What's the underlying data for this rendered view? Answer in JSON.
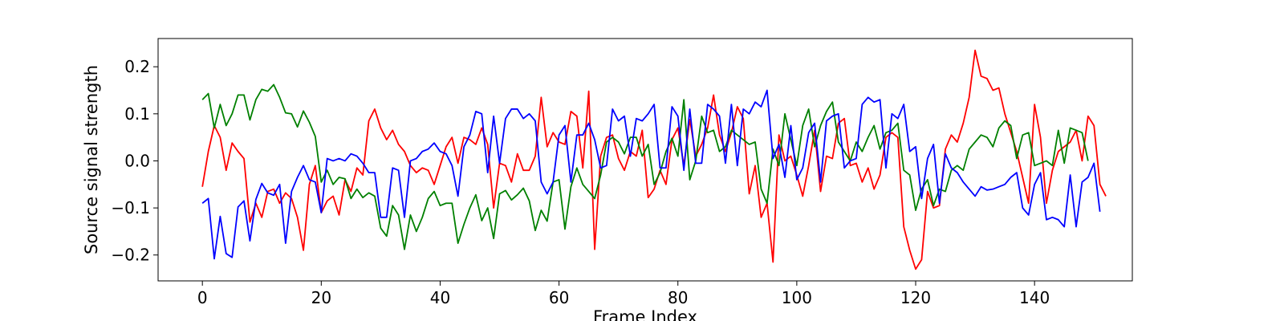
{
  "chart_data": {
    "type": "line",
    "title": "",
    "xlabel": "Frame Index",
    "ylabel": "Source signal strength",
    "xlim": [
      -7.45,
      156.45
    ],
    "ylim": [
      -0.255,
      0.26
    ],
    "xticks": [
      0,
      20,
      40,
      60,
      80,
      100,
      120,
      140
    ],
    "yticks": [
      -0.2,
      -0.1,
      0.0,
      0.1,
      0.2
    ],
    "ytick_labels": [
      "−0.2",
      "−0.1",
      "0.0",
      "0.1",
      "0.2"
    ],
    "grid": false,
    "legend": "none",
    "x_start": 0,
    "series": [
      {
        "color": "#ff0000",
        "values": [
          -0.055,
          0.02,
          0.075,
          0.05,
          -0.02,
          0.038,
          0.02,
          0.005,
          -0.13,
          -0.09,
          -0.12,
          -0.065,
          -0.06,
          -0.09,
          -0.068,
          -0.08,
          -0.12,
          -0.19,
          -0.05,
          -0.01,
          -0.11,
          -0.085,
          -0.075,
          -0.115,
          -0.04,
          -0.065,
          -0.015,
          -0.03,
          0.085,
          0.11,
          0.07,
          0.045,
          0.065,
          0.035,
          0.02,
          -0.01,
          -0.025,
          -0.015,
          -0.02,
          -0.05,
          -0.01,
          0.03,
          0.05,
          -0.005,
          0.05,
          0.045,
          0.035,
          0.07,
          0.035,
          -0.1,
          -0.005,
          -0.01,
          -0.045,
          0.015,
          -0.02,
          -0.02,
          0.01,
          0.135,
          0.03,
          0.06,
          0.04,
          0.035,
          0.105,
          0.095,
          -0.015,
          0.148,
          -0.188,
          0.01,
          0.05,
          0.055,
          0.005,
          -0.02,
          0.02,
          0.01,
          0.065,
          -0.078,
          -0.06,
          -0.02,
          -0.05,
          0.045,
          0.07,
          -0.01,
          0.088,
          0.01,
          0.035,
          0.07,
          0.14,
          0.055,
          0.02,
          0.06,
          0.115,
          0.09,
          -0.07,
          -0.01,
          -0.12,
          -0.09,
          -0.215,
          0.055,
          0.0,
          0.01,
          -0.03,
          -0.075,
          -0.01,
          0.065,
          -0.065,
          0.01,
          0.005,
          0.08,
          0.09,
          -0.01,
          -0.005,
          -0.045,
          -0.015,
          -0.06,
          -0.03,
          0.05,
          0.06,
          0.05,
          -0.14,
          -0.19,
          -0.23,
          -0.21,
          -0.065,
          -0.1,
          -0.095,
          0.025,
          0.055,
          0.04,
          0.08,
          0.135,
          0.235,
          0.18,
          0.175,
          0.15,
          0.155,
          0.1,
          0.06,
          0.02,
          -0.035,
          -0.09,
          0.12,
          0.05,
          -0.09,
          -0.02,
          0.02,
          0.03,
          0.04,
          0.065,
          0.0,
          0.095,
          0.075,
          -0.05,
          -0.075
        ]
      },
      {
        "color": "#008000",
        "values": [
          0.13,
          0.143,
          0.07,
          0.12,
          0.075,
          0.1,
          0.14,
          0.14,
          0.087,
          0.13,
          0.152,
          0.148,
          0.162,
          0.135,
          0.102,
          0.1,
          0.072,
          0.106,
          0.082,
          0.052,
          -0.045,
          -0.02,
          -0.05,
          -0.035,
          -0.038,
          -0.08,
          -0.06,
          -0.078,
          -0.068,
          -0.075,
          -0.143,
          -0.16,
          -0.095,
          -0.115,
          -0.188,
          -0.115,
          -0.15,
          -0.12,
          -0.08,
          -0.065,
          -0.095,
          -0.09,
          -0.09,
          -0.175,
          -0.135,
          -0.1,
          -0.072,
          -0.127,
          -0.1,
          -0.165,
          -0.07,
          -0.063,
          -0.083,
          -0.072,
          -0.058,
          -0.085,
          -0.148,
          -0.105,
          -0.128,
          -0.045,
          -0.04,
          -0.145,
          -0.055,
          -0.015,
          -0.05,
          -0.065,
          -0.08,
          -0.03,
          0.04,
          0.05,
          0.04,
          0.015,
          0.05,
          0.05,
          0.01,
          0.035,
          -0.05,
          -0.025,
          0.02,
          0.048,
          0.01,
          0.13,
          -0.04,
          0.0,
          0.095,
          0.06,
          0.065,
          0.02,
          0.03,
          0.065,
          0.055,
          0.045,
          0.035,
          0.04,
          -0.06,
          -0.09,
          0.025,
          -0.01,
          0.1,
          0.045,
          -0.01,
          0.075,
          0.11,
          0.03,
          0.075,
          0.105,
          0.125,
          0.04,
          0.02,
          0.0,
          0.04,
          0.02,
          0.05,
          0.075,
          0.025,
          0.06,
          0.065,
          0.08,
          -0.02,
          -0.03,
          -0.105,
          -0.06,
          -0.04,
          -0.095,
          -0.06,
          -0.065,
          -0.02,
          -0.01,
          -0.02,
          0.025,
          0.04,
          0.055,
          0.05,
          0.03,
          0.07,
          0.085,
          0.075,
          0.005,
          0.055,
          0.06,
          -0.01,
          -0.005,
          0.0,
          -0.01,
          0.065,
          -0.005,
          0.07,
          0.065,
          0.06,
          0.0
        ]
      },
      {
        "color": "#0000ff",
        "values": [
          -0.09,
          -0.08,
          -0.208,
          -0.118,
          -0.197,
          -0.205,
          -0.098,
          -0.085,
          -0.17,
          -0.082,
          -0.048,
          -0.068,
          -0.073,
          -0.05,
          -0.175,
          -0.065,
          -0.035,
          -0.01,
          -0.04,
          -0.045,
          -0.11,
          0.005,
          0.0,
          0.005,
          0.0,
          0.015,
          0.01,
          -0.005,
          -0.025,
          -0.025,
          -0.12,
          -0.12,
          -0.015,
          -0.02,
          -0.12,
          0.0,
          0.005,
          0.02,
          0.025,
          0.038,
          0.02,
          0.015,
          -0.01,
          -0.075,
          0.03,
          0.055,
          0.105,
          0.1,
          -0.025,
          0.095,
          -0.005,
          0.09,
          0.11,
          0.11,
          0.09,
          0.1,
          0.085,
          -0.045,
          -0.07,
          -0.045,
          0.055,
          0.075,
          -0.045,
          0.055,
          0.055,
          0.08,
          0.045,
          -0.015,
          -0.01,
          0.11,
          0.085,
          0.095,
          0.01,
          0.09,
          0.085,
          0.1,
          0.12,
          -0.015,
          -0.015,
          0.115,
          0.095,
          -0.02,
          0.11,
          -0.005,
          -0.005,
          0.12,
          0.11,
          0.095,
          -0.005,
          0.12,
          -0.01,
          0.11,
          0.1,
          0.125,
          0.115,
          0.15,
          0.005,
          0.035,
          -0.035,
          0.075,
          -0.04,
          -0.015,
          0.06,
          0.08,
          -0.045,
          0.085,
          0.095,
          0.1,
          -0.015,
          0.0,
          0.005,
          0.12,
          0.135,
          0.125,
          0.13,
          -0.015,
          0.1,
          0.09,
          0.12,
          0.02,
          0.03,
          -0.08,
          0.005,
          0.035,
          -0.09,
          0.015,
          -0.015,
          -0.025,
          -0.045,
          -0.06,
          -0.075,
          -0.055,
          -0.062,
          -0.06,
          -0.055,
          -0.05,
          -0.035,
          -0.025,
          -0.1,
          -0.115,
          -0.05,
          -0.025,
          -0.125,
          -0.12,
          -0.125,
          -0.14,
          -0.03,
          -0.14,
          -0.045,
          -0.035,
          -0.005,
          -0.108
        ]
      }
    ]
  }
}
